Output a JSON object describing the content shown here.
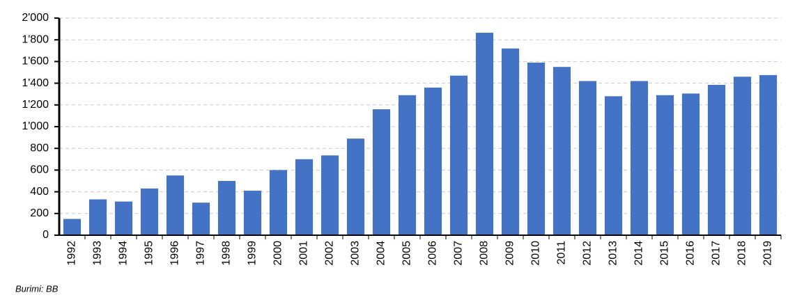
{
  "chart_data": {
    "type": "bar",
    "categories": [
      "1992",
      "1993",
      "1994",
      "1995",
      "1996",
      "1997",
      "1998",
      "1999",
      "2000",
      "2001",
      "2002",
      "2003",
      "2004",
      "2005",
      "2006",
      "2007",
      "2008",
      "2009",
      "2010",
      "2011",
      "2012",
      "2013",
      "2014",
      "2015",
      "2016",
      "2017",
      "2018",
      "2019"
    ],
    "values": [
      150,
      330,
      310,
      430,
      550,
      300,
      500,
      410,
      600,
      700,
      735,
      890,
      1160,
      1290,
      1360,
      1470,
      1865,
      1720,
      1590,
      1550,
      1420,
      1280,
      1420,
      1290,
      1305,
      1385,
      1460,
      1475
    ],
    "color": "#4472c4",
    "ylim": [
      0,
      2000
    ],
    "yticks": [
      0,
      200,
      400,
      600,
      800,
      {
        "value": 1000,
        "label": "1'000"
      },
      {
        "value": 1200,
        "label": "1'200"
      },
      {
        "value": 1400,
        "label": "1'400"
      },
      {
        "value": 1600,
        "label": "1'600"
      },
      {
        "value": 1800,
        "label": "1'800"
      },
      {
        "value": 2000,
        "label": "2'000"
      }
    ],
    "grid": true,
    "source": "Burimi: BB"
  }
}
